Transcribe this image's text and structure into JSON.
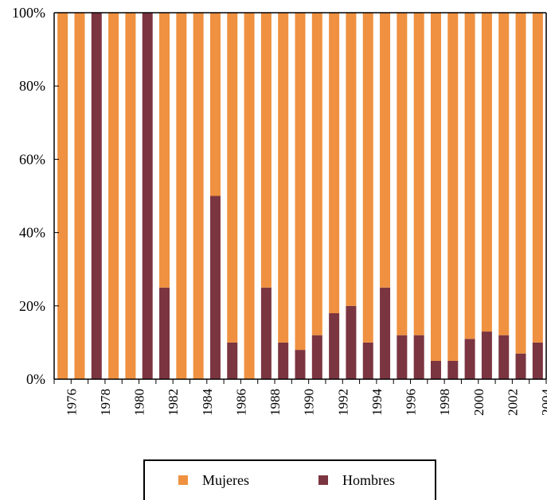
{
  "chart_data": {
    "type": "bar",
    "stacked": true,
    "categories": [
      "1976",
      "1977",
      "1978",
      "1979",
      "1980",
      "1981",
      "1982",
      "1983",
      "1984",
      "1985",
      "1986",
      "1987",
      "1988",
      "1989",
      "1990",
      "1991",
      "1992",
      "1993",
      "1994",
      "1995",
      "1996",
      "1997",
      "1998",
      "1999",
      "2000",
      "2001",
      "2002",
      "2003",
      "2004"
    ],
    "tick_labels": [
      "1976",
      "1978",
      "1980",
      "1982",
      "1984",
      "1986",
      "1988",
      "1990",
      "1992",
      "1994",
      "1996",
      "1998",
      "2000",
      "2002",
      "2004"
    ],
    "y_tick_labels": [
      "0%",
      "20%",
      "40%",
      "60%",
      "80%",
      "100%"
    ],
    "y_ticks": [
      0,
      20,
      40,
      60,
      80,
      100
    ],
    "ylim": [
      0,
      100
    ],
    "series": [
      {
        "name": "Hombres",
        "color": "#7b3540",
        "values": [
          0,
          0,
          100,
          0,
          0,
          100,
          25,
          0,
          0,
          50,
          10,
          0,
          25,
          10,
          8,
          12,
          18,
          20,
          10,
          25,
          12,
          12,
          5,
          5,
          11,
          13,
          12,
          7,
          10
        ]
      },
      {
        "name": "Mujeres",
        "color": "#ef9140",
        "values": [
          100,
          100,
          0,
          100,
          100,
          0,
          75,
          100,
          100,
          50,
          90,
          100,
          75,
          90,
          92,
          88,
          82,
          80,
          90,
          75,
          88,
          88,
          95,
          95,
          89,
          87,
          88,
          93,
          90
        ]
      }
    ],
    "legend": {
      "position": "bottom",
      "items": [
        "Mujeres",
        "Hombres"
      ]
    },
    "grid": false
  }
}
